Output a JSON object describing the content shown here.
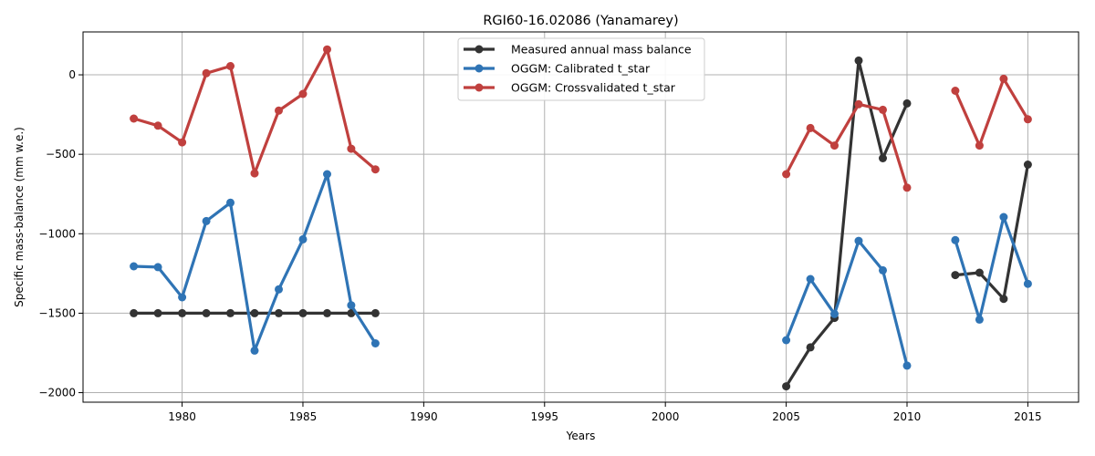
{
  "chart_data": {
    "type": "line",
    "title": "RGI60-16.02086 (Yanamarey)",
    "xlabel": "Years",
    "ylabel": "Specific mass-balance (mm w.e.)",
    "xlim": [
      1975.9,
      2017.1
    ],
    "ylim": [
      -2060,
      270
    ],
    "xticks": [
      1980,
      1985,
      1990,
      1995,
      2000,
      2005,
      2010,
      2015
    ],
    "yticks": [
      0,
      -500,
      -1000,
      -1500,
      -2000
    ],
    "grid": true,
    "legend": "top-center",
    "series": [
      {
        "name": "Measured annual mass balance",
        "color": "#333333",
        "segments": [
          {
            "x": [
              1978,
              1979,
              1980,
              1981,
              1982,
              1983,
              1984,
              1985,
              1986,
              1987,
              1988
            ],
            "y": [
              -1500,
              -1500,
              -1500,
              -1500,
              -1500,
              -1500,
              -1500,
              -1500,
              -1500,
              -1500,
              -1500
            ]
          },
          {
            "x": [
              2005,
              2006,
              2007,
              2008,
              2009,
              2010
            ],
            "y": [
              -1960,
              -1715,
              -1530,
              90,
              -525,
              -180
            ]
          },
          {
            "x": [
              2012,
              2013,
              2014,
              2015
            ],
            "y": [
              -1260,
              -1245,
              -1410,
              -565
            ]
          }
        ]
      },
      {
        "name": "OGGM: Calibrated t_star",
        "color": "#2f74b5",
        "segments": [
          {
            "x": [
              1978,
              1979,
              1980,
              1981,
              1982,
              1983,
              1984,
              1985,
              1986,
              1987,
              1988
            ],
            "y": [
              -1205,
              -1210,
              -1400,
              -920,
              -805,
              -1735,
              -1350,
              -1035,
              -625,
              -1450,
              -1690
            ]
          },
          {
            "x": [
              2005,
              2006,
              2007,
              2008,
              2009,
              2010
            ],
            "y": [
              -1670,
              -1285,
              -1505,
              -1045,
              -1230,
              -1830
            ]
          },
          {
            "x": [
              2012,
              2013,
              2014,
              2015
            ],
            "y": [
              -1040,
              -1540,
              -895,
              -1315
            ]
          }
        ]
      },
      {
        "name": "OGGM: Crossvalidated t_star",
        "color": "#c0403e",
        "segments": [
          {
            "x": [
              1978,
              1979,
              1980,
              1981,
              1982,
              1983,
              1984,
              1985,
              1986,
              1987,
              1988
            ],
            "y": [
              -275,
              -320,
              -425,
              10,
              55,
              -620,
              -225,
              -120,
              160,
              -465,
              -595
            ]
          },
          {
            "x": [
              2005,
              2006,
              2007,
              2008,
              2009,
              2010
            ],
            "y": [
              -625,
              -335,
              -445,
              -185,
              -220,
              -710
            ]
          },
          {
            "x": [
              2012,
              2013,
              2014,
              2015
            ],
            "y": [
              -100,
              -445,
              -25,
              -280
            ]
          }
        ]
      }
    ]
  }
}
